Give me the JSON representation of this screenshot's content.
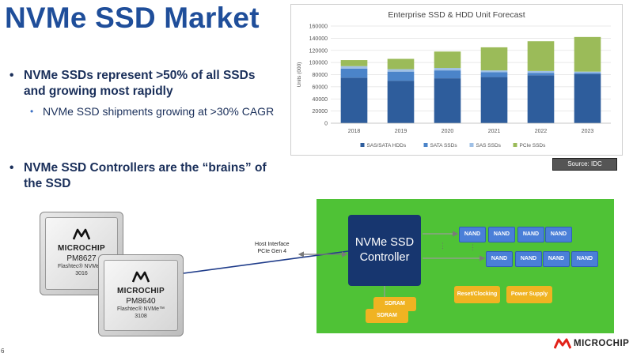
{
  "slide": {
    "title": "NVMe SSD Market",
    "page_number": "6"
  },
  "bullets": [
    {
      "text": "NVMe SSDs represent >50% of all SSDs and growing most rapidly",
      "level": 1
    },
    {
      "text": "NVMe SSD shipments growing at >30% CAGR",
      "level": 2
    },
    {
      "text": "NVMe SSD Controllers are the “brains” of the SSD",
      "level": 1
    }
  ],
  "chart_data": {
    "type": "bar",
    "stacked": true,
    "title": "Enterprise SSD & HDD Unit Forecast",
    "ylabel": "Units (000)",
    "xlabel": "",
    "ylim": [
      0,
      160000
    ],
    "yticks": [
      0,
      20000,
      40000,
      60000,
      80000,
      100000,
      120000,
      140000,
      160000
    ],
    "categories": [
      "2018",
      "2019",
      "2020",
      "2021",
      "2022",
      "2023"
    ],
    "series": [
      {
        "name": "SAS/SATA HDDs",
        "color": "#2e5d9c",
        "values": [
          75000,
          70000,
          74000,
          76000,
          79000,
          81000
        ]
      },
      {
        "name": "SATA SSDs",
        "color": "#4b84c9",
        "values": [
          15000,
          15000,
          13000,
          8000,
          4000,
          2000
        ]
      },
      {
        "name": "SAS SSDs",
        "color": "#9fc0e6",
        "values": [
          4000,
          4000,
          4000,
          3000,
          3000,
          2000
        ]
      },
      {
        "name": "PCIe SSDs",
        "color": "#9bbb59",
        "values": [
          10000,
          17000,
          27000,
          38000,
          49000,
          57000
        ]
      }
    ],
    "legend_position": "bottom",
    "grid": true
  },
  "source_label": "Source: IDC",
  "diagram": {
    "host_interface_line1": "Host Interface",
    "host_interface_line2": "PCIe Gen 4",
    "controller_line1": "NVMe SSD",
    "controller_line2": "Controller",
    "nand_label": "NAND",
    "sdram_label": "SDRAM",
    "reset_clocking": "Reset/Clocking",
    "power_supply": "Power Supply",
    "background_color": "#4fc236",
    "controller_color": "#17366f",
    "nand_color": "#4a7fd8",
    "support_color": "#f0b322"
  },
  "chips": [
    {
      "brand": "MICROCHIP",
      "part": "PM8627",
      "line1": "Flashtec® NVMe™",
      "line2": "3016"
    },
    {
      "brand": "MICROCHIP",
      "part": "PM8640",
      "line1": "Flashtec® NVMe™",
      "line2": "3108"
    }
  ],
  "footer": {
    "brand": "MICROCHIP",
    "logo_icon": "microchip-logo-icon",
    "brand_color": "#e2231a"
  }
}
